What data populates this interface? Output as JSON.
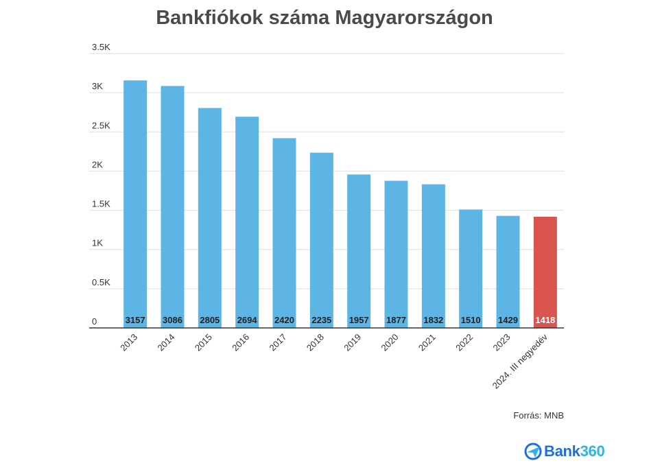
{
  "chart_data": {
    "type": "bar",
    "title": "Bankfiókok száma Magyarországon",
    "categories": [
      "2013",
      "2014",
      "2015",
      "2016",
      "2017",
      "2018",
      "2019",
      "2020",
      "2021",
      "2022",
      "2023",
      "2024. III negyedév"
    ],
    "values": [
      3157,
      3086,
      2805,
      2694,
      2420,
      2235,
      1957,
      1877,
      1832,
      1510,
      1429,
      1418
    ],
    "ylim": [
      0,
      3500
    ],
    "yticks": [
      0,
      500,
      1000,
      1500,
      2000,
      2500,
      3000,
      3500
    ],
    "ytick_labels": [
      "0",
      "0.5K",
      "1K",
      "1.5K",
      "2K",
      "2.5K",
      "3K",
      "3.5K"
    ],
    "xlabel": "",
    "ylabel": "",
    "grid": true,
    "colors": {
      "default": "#5db5e6",
      "highlight": "#d9534f"
    },
    "highlight_index": 11
  },
  "source": "Forrás: MNB",
  "logo": {
    "part1": "Bank",
    "part2": "360"
  }
}
